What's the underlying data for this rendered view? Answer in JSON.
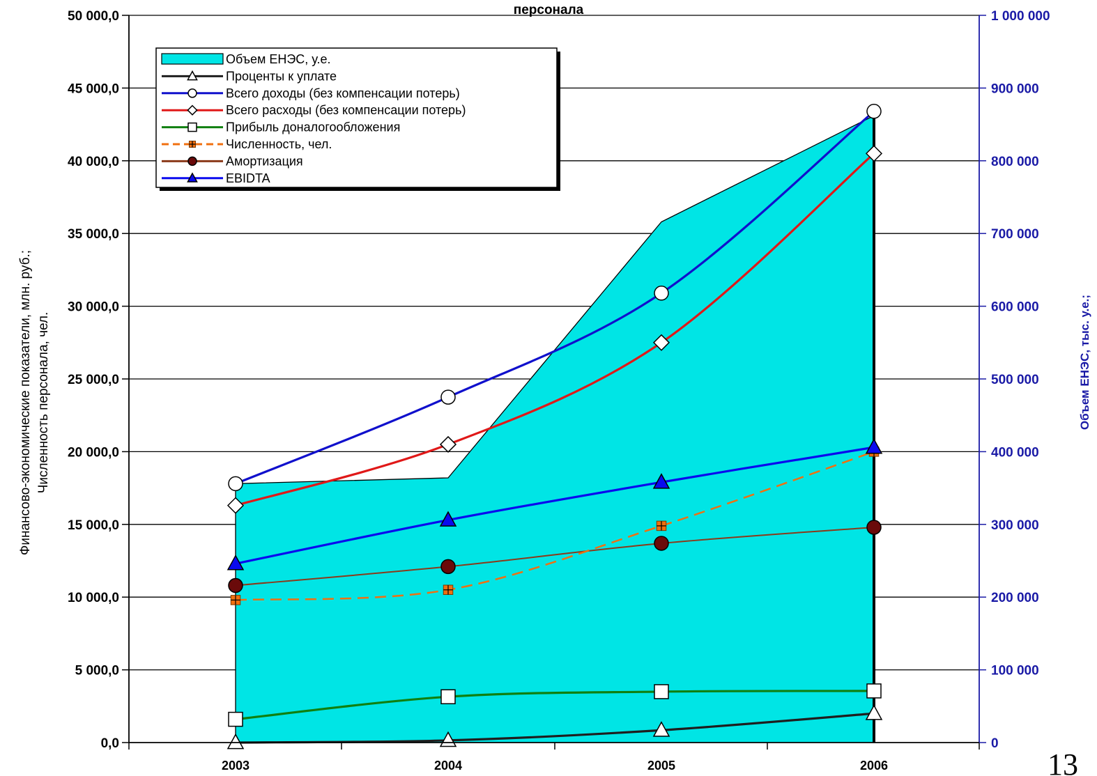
{
  "chart_data": {
    "type": "line",
    "title": "персонала",
    "x": [
      "2003",
      "2004",
      "2005",
      "2006"
    ],
    "ylabel_left": [
      "Финансово-экономические показатели, млн. руб.;",
      "Численность персонала, чел."
    ],
    "ylabel_right": "Объем ЕНЭС, тыс. у.е.;",
    "ylim_left": [
      0,
      50000
    ],
    "ylim_right": [
      0,
      1000000
    ],
    "yticks_left": [
      "0,0",
      "5 000,0",
      "10 000,0",
      "15 000,0",
      "20 000,0",
      "25 000,0",
      "30 000,0",
      "35 000,0",
      "40 000,0",
      "45 000,0",
      "50 000,0"
    ],
    "yticks_right": [
      "0",
      "100 000",
      "200 000",
      "300 000",
      "400 000",
      "500 000",
      "600 000",
      "700 000",
      "800 000",
      "900 000",
      "1 000 000"
    ],
    "grid": true,
    "legend_position": "top-left",
    "series": [
      {
        "name": "Объем ЕНЭС, у.е.",
        "kind": "area",
        "axis": "right",
        "color": "#00e5e5",
        "values": [
          356000,
          364000,
          716000,
          862000
        ]
      },
      {
        "name": "Проценты к уплате",
        "kind": "line",
        "axis": "left",
        "color": "#1e1e1e",
        "marker": "triangle-open",
        "values": [
          0,
          150,
          850,
          2000
        ]
      },
      {
        "name": "Всего доходы (без компенсации потерь)",
        "kind": "line",
        "axis": "left",
        "color": "#1010cc",
        "marker": "circle-open",
        "values": [
          17800,
          23750,
          30900,
          43400
        ]
      },
      {
        "name": "Всего расходы (без компенсации потерь)",
        "kind": "line",
        "axis": "left",
        "color": "#e01818",
        "marker": "diamond-open",
        "values": [
          16300,
          20500,
          27500,
          40500
        ]
      },
      {
        "name": "Прибыль доналогообложения",
        "kind": "line",
        "axis": "left",
        "color": "#108010",
        "marker": "square-open",
        "values": [
          1600,
          3150,
          3500,
          3550
        ]
      },
      {
        "name": "Численность, чел.",
        "kind": "line",
        "dashed": true,
        "axis": "left",
        "color": "#f07010",
        "marker": "square-plus",
        "values": [
          9800,
          10500,
          14900,
          20000
        ]
      },
      {
        "name": "Амортизация",
        "kind": "line",
        "axis": "left",
        "color": "#8b3a1a",
        "marker": "circle-filled",
        "values": [
          10800,
          12100,
          13700,
          14800
        ]
      },
      {
        "name": "EBIDTA",
        "kind": "line",
        "axis": "left",
        "color": "#0a0aee",
        "marker": "triangle-filled",
        "values": [
          12300,
          15300,
          17900,
          20300
        ]
      }
    ]
  },
  "page_number": "13"
}
